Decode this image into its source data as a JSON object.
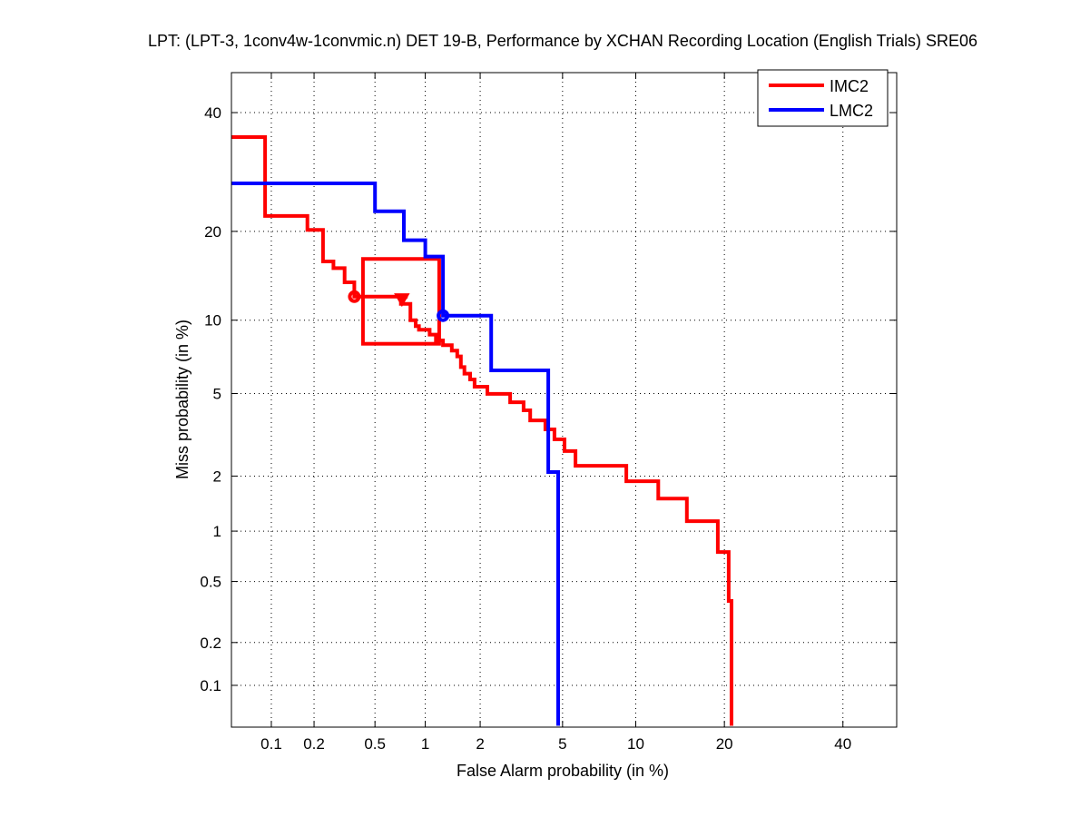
{
  "chart_data": {
    "type": "line",
    "subtype": "DET (normal deviate scale)",
    "title": "LPT: (LPT-3, 1conv4w-1convmic.n) DET 19-B,  Performance by XCHAN Recording Location (English Trials) SRE06",
    "xlabel": "False Alarm probability (in %)",
    "ylabel": "Miss probability (in %)",
    "xlim": [
      0.05,
      50
    ],
    "ylim": [
      0.05,
      50
    ],
    "xticks": [
      0.1,
      0.2,
      0.5,
      1,
      2,
      5,
      10,
      20,
      40
    ],
    "xtick_labels": [
      "0.1",
      "0.2",
      "0.5",
      "1",
      "2",
      "5",
      "10",
      "20",
      "40"
    ],
    "yticks": [
      0.1,
      0.2,
      0.5,
      1,
      2,
      5,
      10,
      20,
      40
    ],
    "ytick_labels": [
      "0.1",
      "0.2",
      "0.5",
      "1",
      "2",
      "5",
      "10",
      "20",
      "40"
    ],
    "grid": true,
    "legend_position": "top-right",
    "series": [
      {
        "name": "IMC2",
        "color": "#ff0000",
        "points": [
          [
            0.05,
            35.4
          ],
          [
            0.09,
            35.4
          ],
          [
            0.09,
            22.2
          ],
          [
            0.18,
            22.2
          ],
          [
            0.18,
            20.2
          ],
          [
            0.23,
            20.2
          ],
          [
            0.23,
            16.1
          ],
          [
            0.27,
            16.1
          ],
          [
            0.27,
            15.3
          ],
          [
            0.32,
            15.3
          ],
          [
            0.32,
            13.7
          ],
          [
            0.37,
            13.7
          ],
          [
            0.37,
            12.2
          ],
          [
            0.79,
            12.2
          ],
          [
            0.72,
            12.2
          ],
          [
            0.72,
            11.5
          ],
          [
            0.82,
            11.5
          ],
          [
            0.82,
            10.0
          ],
          [
            0.88,
            10.0
          ],
          [
            0.88,
            9.5
          ],
          [
            0.92,
            9.5
          ],
          [
            0.92,
            9.2
          ],
          [
            1.06,
            9.2
          ],
          [
            1.06,
            8.8
          ],
          [
            1.15,
            8.8
          ],
          [
            1.15,
            8.35
          ],
          [
            1.26,
            8.35
          ],
          [
            1.26,
            8.0
          ],
          [
            1.41,
            8.0
          ],
          [
            1.41,
            7.6
          ],
          [
            1.51,
            7.6
          ],
          [
            1.51,
            7.2
          ],
          [
            1.58,
            7.2
          ],
          [
            1.58,
            6.5
          ],
          [
            1.65,
            6.5
          ],
          [
            1.65,
            6.1
          ],
          [
            1.77,
            6.1
          ],
          [
            1.77,
            5.76
          ],
          [
            1.87,
            5.76
          ],
          [
            1.87,
            5.36
          ],
          [
            2.18,
            5.36
          ],
          [
            2.18,
            4.98
          ],
          [
            2.84,
            4.98
          ],
          [
            2.84,
            4.57
          ],
          [
            3.3,
            4.57
          ],
          [
            3.3,
            4.2
          ],
          [
            3.55,
            4.2
          ],
          [
            3.55,
            3.77
          ],
          [
            4.18,
            3.77
          ],
          [
            4.18,
            3.42
          ],
          [
            4.6,
            3.42
          ],
          [
            4.6,
            3.06
          ],
          [
            5.1,
            3.06
          ],
          [
            5.1,
            2.68
          ],
          [
            5.7,
            2.68
          ],
          [
            5.7,
            2.26
          ],
          [
            9.2,
            2.26
          ],
          [
            9.2,
            1.88
          ],
          [
            12.1,
            1.88
          ],
          [
            12.1,
            1.52
          ],
          [
            15.2,
            1.52
          ],
          [
            15.2,
            1.14
          ],
          [
            19.1,
            1.14
          ],
          [
            19.1,
            0.755
          ],
          [
            20.6,
            0.755
          ],
          [
            20.6,
            0.377
          ],
          [
            21.0,
            0.377
          ],
          [
            21.0,
            0.05
          ]
        ],
        "markers": [
          {
            "shape": "circle",
            "fa": 0.37,
            "miss": 12.2
          },
          {
            "shape": "triangle-down",
            "fa": 0.73,
            "miss": 11.9
          }
        ],
        "confidence_box": {
          "fa": [
            0.42,
            1.2
          ],
          "miss": [
            8.1,
            16.4
          ]
        }
      },
      {
        "name": "LMC2",
        "color": "#0000ff",
        "points": [
          [
            0.05,
            27.3
          ],
          [
            0.5,
            27.3
          ],
          [
            0.5,
            22.9
          ],
          [
            0.75,
            22.9
          ],
          [
            0.75,
            18.8
          ],
          [
            1.0,
            18.8
          ],
          [
            1.0,
            16.7
          ],
          [
            1.26,
            16.7
          ],
          [
            1.26,
            10.4
          ],
          [
            2.28,
            10.4
          ],
          [
            2.28,
            6.3
          ],
          [
            4.31,
            6.3
          ],
          [
            4.31,
            2.1
          ],
          [
            4.78,
            2.1
          ],
          [
            4.78,
            0.05
          ]
        ],
        "markers": [
          {
            "shape": "circle",
            "fa": 1.26,
            "miss": 10.4
          }
        ]
      }
    ]
  }
}
